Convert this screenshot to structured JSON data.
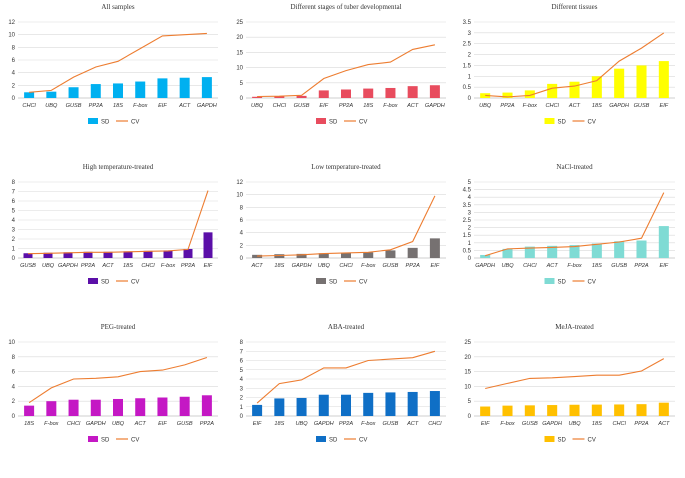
{
  "figure": {
    "legend_sd": "SD",
    "legend_cv": "CV",
    "cv_color": "#ED7D31"
  },
  "chart_data": [
    {
      "type": "bar+line",
      "title": "All samples",
      "categories": [
        "CHCl",
        "UBQ",
        "GUSB",
        "PP2A",
        "18S",
        "F-box",
        "EIF",
        "ACT",
        "GAPDH"
      ],
      "series": [
        {
          "name": "SD",
          "type": "bar",
          "color": "#00B0F0",
          "values": [
            0.9,
            1.0,
            1.7,
            2.2,
            2.3,
            2.6,
            3.1,
            3.2,
            3.3
          ]
        },
        {
          "name": "CV",
          "type": "line",
          "color": "#ED7D31",
          "values": [
            0.9,
            1.2,
            3.3,
            4.9,
            5.8,
            7.8,
            9.8,
            10.0,
            10.2
          ]
        }
      ],
      "ylim": [
        0,
        12
      ],
      "yticks": [
        0,
        2,
        4,
        6,
        8,
        10,
        12
      ]
    },
    {
      "type": "bar+line",
      "title": "Different stages of tuber developmental",
      "categories": [
        "UBQ",
        "CHCl",
        "GUSB",
        "EIF",
        "PP2A",
        "18S",
        "F-box",
        "ACT",
        "GAPDH"
      ],
      "series": [
        {
          "name": "SD",
          "type": "bar",
          "color": "#E84C5E",
          "values": [
            0.4,
            0.5,
            0.7,
            2.5,
            2.8,
            3.1,
            3.3,
            3.9,
            4.2
          ]
        },
        {
          "name": "CV",
          "type": "line",
          "color": "#ED7D31",
          "values": [
            0.5,
            0.6,
            0.9,
            6.4,
            9.0,
            11.0,
            11.8,
            16.0,
            17.5
          ]
        }
      ],
      "ylim": [
        0,
        25
      ],
      "yticks": [
        0,
        5,
        10,
        15,
        20,
        25
      ]
    },
    {
      "type": "bar+line",
      "title": "Different tissues",
      "categories": [
        "UBQ",
        "PP2A",
        "F-box",
        "CHCl",
        "ACT",
        "18S",
        "GAPDH",
        "GUSB",
        "EIF"
      ],
      "series": [
        {
          "name": "SD",
          "type": "bar",
          "color": "#FFFF00",
          "values": [
            0.22,
            0.25,
            0.35,
            0.65,
            0.75,
            1.0,
            1.35,
            1.5,
            1.7
          ]
        },
        {
          "name": "CV",
          "type": "line",
          "color": "#ED7D31",
          "values": [
            0.12,
            0.05,
            0.12,
            0.45,
            0.55,
            0.8,
            1.7,
            2.3,
            3.0
          ]
        }
      ],
      "ylim": [
        0,
        3.5
      ],
      "yticks": [
        0,
        0.5,
        1,
        1.5,
        2,
        2.5,
        3,
        3.5
      ]
    },
    {
      "type": "bar+line",
      "title": "High temperature-treated",
      "categories": [
        "GUSB",
        "UBQ",
        "GAPDH",
        "PP2A",
        "ACT",
        "18S",
        "CHCl",
        "F-box",
        "PP2A",
        "EIF"
      ],
      "series": [
        {
          "name": "SD",
          "type": "bar",
          "color": "#5B0FA8",
          "values": [
            0.5,
            0.55,
            0.6,
            0.65,
            0.65,
            0.7,
            0.75,
            0.8,
            0.95,
            2.7
          ]
        },
        {
          "name": "CV",
          "type": "line",
          "color": "#ED7D31",
          "values": [
            0.45,
            0.5,
            0.55,
            0.6,
            0.6,
            0.65,
            0.7,
            0.75,
            0.9,
            7.1
          ]
        }
      ],
      "ylim": [
        0,
        8
      ],
      "yticks": [
        0,
        1,
        2,
        3,
        4,
        5,
        6,
        7,
        8
      ]
    },
    {
      "type": "bar+line",
      "title": "Low temperature-treated",
      "categories": [
        "ACT",
        "18S",
        "GAPDH",
        "UBQ",
        "CHCl",
        "F-box",
        "GUSB",
        "PP2A",
        "EIF"
      ],
      "series": [
        {
          "name": "SD",
          "type": "bar",
          "color": "#767171",
          "values": [
            0.5,
            0.6,
            0.65,
            0.75,
            0.8,
            0.9,
            1.2,
            1.6,
            3.1
          ]
        },
        {
          "name": "CV",
          "type": "line",
          "color": "#ED7D31",
          "values": [
            0.3,
            0.4,
            0.5,
            0.7,
            0.8,
            0.9,
            1.3,
            2.6,
            9.8
          ]
        }
      ],
      "ylim": [
        0,
        12
      ],
      "yticks": [
        0,
        2,
        4,
        6,
        8,
        10,
        12
      ]
    },
    {
      "type": "bar+line",
      "title": "NaCl-treated",
      "categories": [
        "GAPDH",
        "UBQ",
        "CHCl",
        "ACT",
        "F-box",
        "18S",
        "GUSB",
        "PP2A",
        "EIF"
      ],
      "series": [
        {
          "name": "SD",
          "type": "bar",
          "color": "#7FDBD4",
          "values": [
            0.2,
            0.6,
            0.75,
            0.8,
            0.85,
            0.95,
            1.1,
            1.15,
            2.1
          ]
        },
        {
          "name": "CV",
          "type": "line",
          "color": "#ED7D31",
          "values": [
            0.15,
            0.6,
            0.65,
            0.7,
            0.75,
            0.9,
            1.05,
            1.3,
            4.3
          ]
        }
      ],
      "ylim": [
        0,
        5
      ],
      "yticks": [
        0,
        0.5,
        1,
        1.5,
        2,
        2.5,
        3,
        3.5,
        4,
        4.5,
        5
      ]
    },
    {
      "type": "bar+line",
      "title": "PEG-treated",
      "categories": [
        "18S",
        "F-box",
        "CHCl",
        "GAPDH",
        "UBQ",
        "ACT",
        "EIF",
        "GUSB",
        "PP2A"
      ],
      "series": [
        {
          "name": "SD",
          "type": "bar",
          "color": "#C418C4",
          "values": [
            1.4,
            2.0,
            2.2,
            2.2,
            2.3,
            2.4,
            2.5,
            2.6,
            2.8
          ]
        },
        {
          "name": "CV",
          "type": "line",
          "color": "#ED7D31",
          "values": [
            1.8,
            3.8,
            5.0,
            5.1,
            5.3,
            6.0,
            6.2,
            6.9,
            7.9
          ]
        }
      ],
      "ylim": [
        0,
        10
      ],
      "yticks": [
        0,
        2,
        4,
        6,
        8,
        10
      ]
    },
    {
      "type": "bar+line",
      "title": "ABA-treated",
      "categories": [
        "EIF",
        "18S",
        "UBQ",
        "GAPDH",
        "PP2A",
        "F-box",
        "GUSB",
        "ACT",
        "CHCl"
      ],
      "series": [
        {
          "name": "SD",
          "type": "bar",
          "color": "#0F6FC6",
          "values": [
            1.2,
            1.9,
            1.95,
            2.3,
            2.3,
            2.5,
            2.55,
            2.6,
            2.7
          ]
        },
        {
          "name": "CV",
          "type": "line",
          "color": "#ED7D31",
          "values": [
            1.4,
            3.5,
            3.9,
            5.2,
            5.2,
            6.0,
            6.15,
            6.3,
            7.0
          ]
        }
      ],
      "ylim": [
        0,
        8
      ],
      "yticks": [
        0,
        1,
        2,
        3,
        4,
        5,
        6,
        7,
        8
      ]
    },
    {
      "type": "bar+line",
      "title": "MeJA-treated",
      "categories": [
        "EIF",
        "F-box",
        "GUSB",
        "GAPDH",
        "UBQ",
        "18S",
        "CHCl",
        "PP2A",
        "ACT"
      ],
      "series": [
        {
          "name": "SD",
          "type": "bar",
          "color": "#FFC000",
          "values": [
            3.2,
            3.5,
            3.6,
            3.7,
            3.8,
            3.85,
            3.9,
            4.0,
            4.5
          ]
        },
        {
          "name": "CV",
          "type": "line",
          "color": "#ED7D31",
          "values": [
            9.3,
            11.0,
            12.7,
            12.9,
            13.3,
            13.8,
            13.8,
            15.2,
            19.4
          ]
        }
      ],
      "ylim": [
        0,
        25
      ],
      "yticks": [
        0,
        5,
        10,
        15,
        20,
        25
      ]
    }
  ]
}
